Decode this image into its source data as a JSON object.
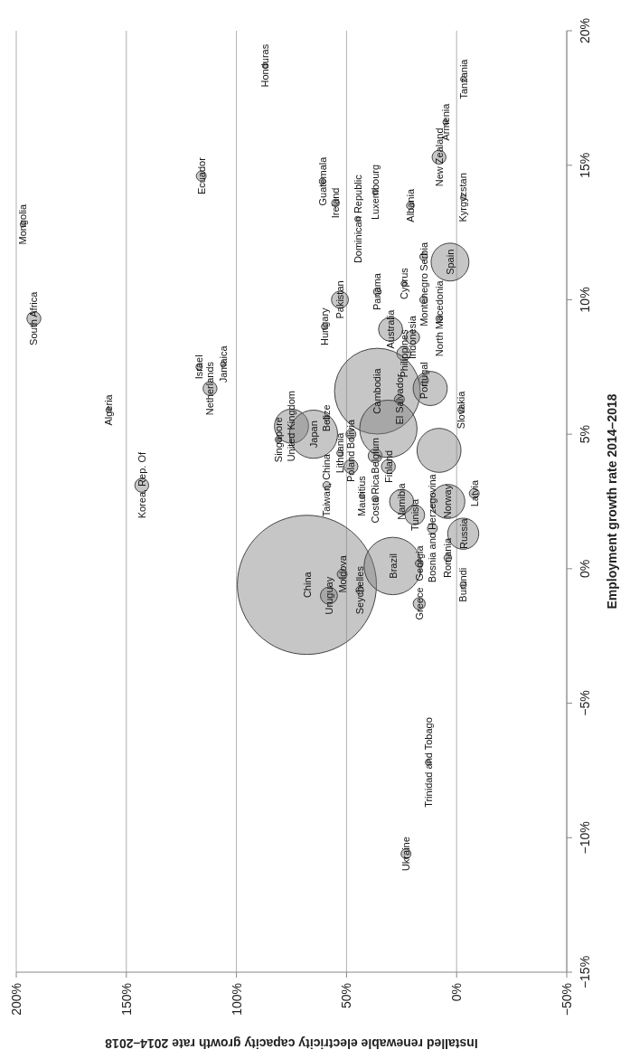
{
  "chart_data": {
    "type": "bubble",
    "xlabel": "Installed renewable electricity capacity growth rate 2014–2018",
    "ylabel": "Employment growth rate 2014–2018",
    "xlim": [
      200,
      -50
    ],
    "xticks": [
      {
        "value": 200,
        "label": "200%"
      },
      {
        "value": 150,
        "label": "150%"
      },
      {
        "value": 100,
        "label": "100%"
      },
      {
        "value": 50,
        "label": "50%"
      },
      {
        "value": 0,
        "label": "0%"
      },
      {
        "value": -50,
        "label": "−50%"
      }
    ],
    "ylim": [
      -15,
      20
    ],
    "yticks": [
      {
        "value": -15,
        "label": "−15%"
      },
      {
        "value": -10,
        "label": "−10%"
      },
      {
        "value": -5,
        "label": "−5%"
      },
      {
        "value": 0,
        "label": "0%"
      },
      {
        "value": 5,
        "label": "5%"
      },
      {
        "value": 10,
        "label": "10%"
      },
      {
        "value": 15,
        "label": "15%"
      },
      {
        "value": 20,
        "label": "20%"
      }
    ],
    "grid": "x",
    "color": "#808080",
    "x": [
      87,
      -3,
      5,
      8,
      -3,
      197,
      192,
      116,
      61,
      55,
      45,
      37,
      21,
      3,
      15,
      53,
      60,
      36,
      24,
      30,
      15,
      8,
      20,
      24,
      15,
      -2,
      117,
      112,
      106,
      81,
      75,
      65,
      59,
      53,
      48,
      59,
      48,
      36,
      26,
      37,
      31,
      43,
      37,
      25,
      19,
      143,
      158,
      68,
      29,
      58,
      52,
      44,
      17,
      17,
      11,
      4,
      -3,
      4,
      -3,
      -8,
      23,
      13,
      31,
      12,
      8
    ],
    "values": [
      18.7,
      18.2,
      16.6,
      15.3,
      13.8,
      12.8,
      9.3,
      14.6,
      14.4,
      13.6,
      13.0,
      14.0,
      13.5,
      11.4,
      11.6,
      10.0,
      9.0,
      10.3,
      10.6,
      8.9,
      10.0,
      9.3,
      8.6,
      8.0,
      7.0,
      5.9,
      7.5,
      6.7,
      7.6,
      4.8,
      5.3,
      5.0,
      3.1,
      4.3,
      3.8,
      5.6,
      5.0,
      6.6,
      6.3,
      4.2,
      3.8,
      2.7,
      2.6,
      2.5,
      2.0,
      3.1,
      5.9,
      -0.6,
      0.1,
      -1.0,
      -0.2,
      -0.8,
      0.2,
      -1.3,
      1.5,
      2.5,
      1.3,
      0.4,
      -0.6,
      2.8,
      -10.6,
      -7.2,
      5.2,
      6.7,
      4.4
    ],
    "sizes": [
      0.0015,
      0.0015,
      0.0015,
      0.01,
      0.0015,
      0.0015,
      0.01,
      0.005,
      0.002,
      0.003,
      0.0015,
      0.0015,
      0.003,
      0.074,
      0.003,
      0.015,
      0.002,
      0.003,
      0.0015,
      0.03,
      0.003,
      0.002,
      0.01,
      0.01,
      0.005,
      0.002,
      0.002,
      0.01,
      0.0015,
      0.002,
      0.06,
      0.12,
      0.003,
      0.002,
      0.01,
      0.0015,
      0.005,
      0.38,
      0.005,
      0.01,
      0.01,
      0.0015,
      0.002,
      0.03,
      0.02,
      0.01,
      0.0015,
      1,
      0.17,
      0.015,
      0.005,
      0.003,
      0.003,
      0.0075,
      0.005,
      0.06,
      0.05,
      0.003,
      0.002,
      0.005,
      0.005,
      0.0015,
      0.17,
      0.06,
      0.1
    ],
    "annotations": [
      {
        "text": "Honduras",
        "x": 87,
        "y": 18.7
      },
      {
        "text": "Tanzania",
        "x": -3,
        "y": 18.2
      },
      {
        "text": "Armenia",
        "x": 5,
        "y": 16.6
      },
      {
        "text": "New Zealand",
        "x": 8,
        "y": 15.3
      },
      {
        "text": "Kyrgyzstan",
        "x": -3,
        "y": 13.8
      },
      {
        "text": "Mongolia",
        "x": 197,
        "y": 12.8
      },
      {
        "text": "South Africa",
        "x": 192,
        "y": 9.3
      },
      {
        "text": "Ecuador",
        "x": 116,
        "y": 14.6
      },
      {
        "text": "Guatemala",
        "x": 61,
        "y": 14.4
      },
      {
        "text": "Ireland",
        "x": 55,
        "y": 13.6
      },
      {
        "text": "Dominican Republic",
        "x": 45,
        "y": 13.0
      },
      {
        "text": "Luxembourg",
        "x": 37,
        "y": 14.0
      },
      {
        "text": "Albania",
        "x": 21,
        "y": 13.5
      },
      {
        "text": "Spain",
        "x": 3,
        "y": 11.4
      },
      {
        "text": "Serbia",
        "x": 15,
        "y": 11.6
      },
      {
        "text": "Pakistan",
        "x": 53,
        "y": 10.0
      },
      {
        "text": "Hungary",
        "x": 60,
        "y": 9.0
      },
      {
        "text": "Panama",
        "x": 36,
        "y": 10.3
      },
      {
        "text": "Cyprus",
        "x": 24,
        "y": 10.6
      },
      {
        "text": "Australia",
        "x": 30,
        "y": 8.9
      },
      {
        "text": "Montenegro",
        "x": 15,
        "y": 10.0
      },
      {
        "text": "North Macedonia",
        "x": 8,
        "y": 9.3
      },
      {
        "text": "Indonesia",
        "x": 20,
        "y": 8.6
      },
      {
        "text": "Philippines",
        "x": 24,
        "y": 8.0
      },
      {
        "text": "Portugal",
        "x": 15,
        "y": 7.0
      },
      {
        "text": "Slovakia",
        "x": -2,
        "y": 5.9
      },
      {
        "text": "Israel",
        "x": 117,
        "y": 7.5
      },
      {
        "text": "Netherlands",
        "x": 112,
        "y": 6.7
      },
      {
        "text": "Jamaica",
        "x": 106,
        "y": 7.6
      },
      {
        "text": "Singapore",
        "x": 81,
        "y": 4.8
      },
      {
        "text": "United Kingdom",
        "x": 75,
        "y": 5.3
      },
      {
        "text": "Japan",
        "x": 65,
        "y": 5.0
      },
      {
        "text": "Taiwan, China",
        "x": 59,
        "y": 3.1
      },
      {
        "text": "Lithuania",
        "x": 53,
        "y": 4.3
      },
      {
        "text": "Poland",
        "x": 48,
        "y": 3.8
      },
      {
        "text": "Belize",
        "x": 59,
        "y": 5.6
      },
      {
        "text": "Bolivia",
        "x": 48,
        "y": 5.0
      },
      {
        "text": "Cambodia",
        "x": 36,
        "y": 6.6
      },
      {
        "text": "El Salvador",
        "x": 26,
        "y": 6.3
      },
      {
        "text": "Belgium",
        "x": 37,
        "y": 4.2
      },
      {
        "text": "Finland",
        "x": 31,
        "y": 3.8
      },
      {
        "text": "Mauritius",
        "x": 43,
        "y": 2.7
      },
      {
        "text": "Costa Rica",
        "x": 37,
        "y": 2.6
      },
      {
        "text": "Namibia",
        "x": 25,
        "y": 2.5
      },
      {
        "text": "Tunisia",
        "x": 19,
        "y": 2.0
      },
      {
        "text": "Korea, Rep. Of",
        "x": 143,
        "y": 3.1
      },
      {
        "text": "Algeria",
        "x": 158,
        "y": 5.9
      },
      {
        "text": "China",
        "x": 68,
        "y": -0.6
      },
      {
        "text": "Brazil",
        "x": 29,
        "y": 0.1
      },
      {
        "text": "Uruguay",
        "x": 58,
        "y": -1.0
      },
      {
        "text": "Moldova",
        "x": 52,
        "y": -0.2
      },
      {
        "text": "Seychelles",
        "x": 44,
        "y": -0.8
      },
      {
        "text": "Georgia",
        "x": 17,
        "y": 0.2
      },
      {
        "text": "Greece",
        "x": 17,
        "y": -1.3
      },
      {
        "text": "Bosnia and Herzegovina",
        "x": 11,
        "y": 1.5
      },
      {
        "text": "Norway",
        "x": 4,
        "y": 2.5
      },
      {
        "text": "Russia",
        "x": -3,
        "y": 1.3
      },
      {
        "text": "Romania",
        "x": 4,
        "y": 0.4
      },
      {
        "text": "Burundi",
        "x": -3,
        "y": -0.6
      },
      {
        "text": "Latvia",
        "x": -8,
        "y": 2.8
      },
      {
        "text": "Ukraine",
        "x": 23,
        "y": -10.6
      },
      {
        "text": "Trinidad and Tobago",
        "x": 13,
        "y": -7.2
      }
    ]
  }
}
